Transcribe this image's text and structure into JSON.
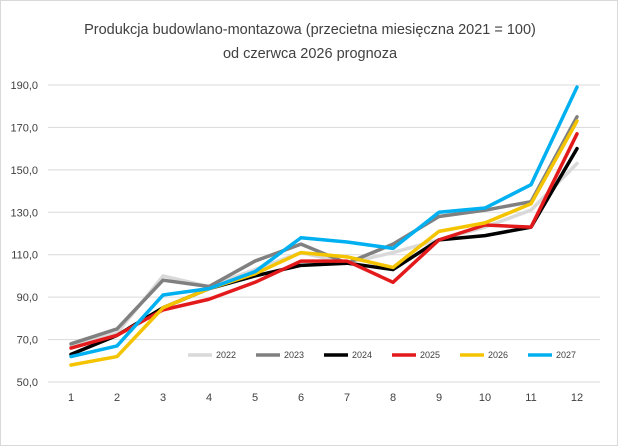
{
  "chart_data": {
    "type": "line",
    "title": "Produkcja budowlano-montazowa (przecietna miesięczna 2021 = 100)",
    "subtitle": "od czerwca 2026 prognoza",
    "xlabel": "",
    "ylabel": "",
    "x": [
      "1",
      "2",
      "3",
      "4",
      "5",
      "6",
      "7",
      "8",
      "9",
      "10",
      "11",
      "12"
    ],
    "y_ticks": [
      "50,0",
      "70,0",
      "90,0",
      "110,0",
      "130,0",
      "150,0",
      "170,0",
      "190,0"
    ],
    "ylim": [
      50,
      190
    ],
    "grid": true,
    "legend_position": "bottom-right-inside",
    "series": [
      {
        "name": "2022",
        "color": "#d9d9d9",
        "values": [
          67,
          73,
          100,
          95,
          103,
          111,
          106,
          111,
          117,
          123,
          131,
          153
        ]
      },
      {
        "name": "2023",
        "color": "#808080",
        "values": [
          68,
          75,
          98,
          95,
          107,
          115,
          106,
          115,
          128,
          131,
          135,
          175
        ]
      },
      {
        "name": "2024",
        "color": "#000000",
        "values": [
          63,
          72,
          85,
          94,
          100,
          105,
          106,
          103,
          117,
          119,
          123,
          160
        ]
      },
      {
        "name": "2025",
        "color": "#e31a1c",
        "values": [
          66,
          72,
          84,
          89,
          97,
          107,
          107,
          97,
          117,
          124,
          123,
          167
        ]
      },
      {
        "name": "2026",
        "color": "#f5c400",
        "values": [
          58,
          62,
          85,
          94,
          101,
          111,
          109,
          104,
          121,
          125,
          134,
          173
        ]
      },
      {
        "name": "2027",
        "color": "#00b0f0",
        "values": [
          62,
          67,
          91,
          94,
          102,
          118,
          116,
          113,
          130,
          132,
          143,
          189
        ]
      }
    ]
  }
}
